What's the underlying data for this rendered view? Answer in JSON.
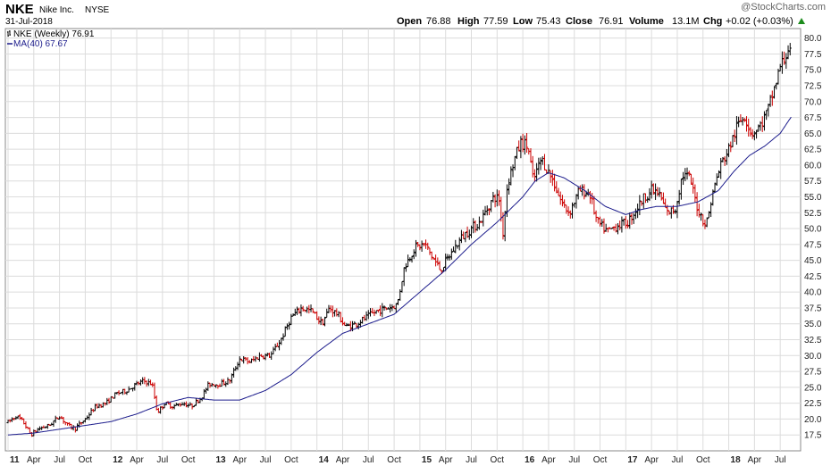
{
  "header": {
    "ticker": "NKE",
    "company": "Nike Inc.",
    "exchange": "NYSE",
    "date": "31-Jul-2018",
    "quote": {
      "open_label": "Open",
      "open": "76.88",
      "high_label": "High",
      "high": "77.59",
      "low_label": "Low",
      "low": "75.43",
      "close_label": "Close",
      "close": "76.91",
      "volume_label": "Volume",
      "volume": "13.1M",
      "chg_label": "Chg",
      "chg": "+0.02 (+0.03%)"
    },
    "watermark": "@StockCharts.com"
  },
  "legend": {
    "price": "NKE (Weekly) 76.91",
    "ma": "MA(40) 67.67"
  },
  "colors": {
    "up": "#000000",
    "down": "#cc0000",
    "ma": "#1c1c8c",
    "grid": "#dcdcdc",
    "chg_arrow": "#1c8c1c"
  },
  "chart_data": {
    "type": "bar",
    "style": "weekly OHLC bars",
    "ylim": [
      15.0,
      81.5
    ],
    "y_ticks": [
      "17.5",
      "20.0",
      "22.5",
      "25.0",
      "27.5",
      "30.0",
      "32.5",
      "35.0",
      "37.5",
      "40.0",
      "42.5",
      "45.0",
      "47.5",
      "50.0",
      "52.5",
      "55.0",
      "57.5",
      "60.0",
      "62.5",
      "65.0",
      "67.5",
      "70.0",
      "72.5",
      "75.0",
      "77.5",
      "80.0"
    ],
    "x_start": 2011.0,
    "x_end": 2018.62,
    "x_ticks": [
      {
        "label": "11",
        "t": 2011.0,
        "year": true
      },
      {
        "label": "Apr",
        "t": 2011.25
      },
      {
        "label": "Jul",
        "t": 2011.5
      },
      {
        "label": "Oct",
        "t": 2011.75
      },
      {
        "label": "12",
        "t": 2012.0,
        "year": true
      },
      {
        "label": "Apr",
        "t": 2012.25
      },
      {
        "label": "Jul",
        "t": 2012.5
      },
      {
        "label": "Oct",
        "t": 2012.75
      },
      {
        "label": "13",
        "t": 2013.0,
        "year": true
      },
      {
        "label": "Apr",
        "t": 2013.25
      },
      {
        "label": "Jul",
        "t": 2013.5
      },
      {
        "label": "Oct",
        "t": 2013.75
      },
      {
        "label": "14",
        "t": 2014.0,
        "year": true
      },
      {
        "label": "Apr",
        "t": 2014.25
      },
      {
        "label": "Jul",
        "t": 2014.5
      },
      {
        "label": "Oct",
        "t": 2014.75
      },
      {
        "label": "15",
        "t": 2015.0,
        "year": true
      },
      {
        "label": "Apr",
        "t": 2015.25
      },
      {
        "label": "Jul",
        "t": 2015.5
      },
      {
        "label": "Oct",
        "t": 2015.75
      },
      {
        "label": "16",
        "t": 2016.0,
        "year": true
      },
      {
        "label": "Apr",
        "t": 2016.25
      },
      {
        "label": "Jul",
        "t": 2016.5
      },
      {
        "label": "Oct",
        "t": 2016.75
      },
      {
        "label": "17",
        "t": 2017.0,
        "year": true
      },
      {
        "label": "Apr",
        "t": 2017.25
      },
      {
        "label": "Jul",
        "t": 2017.5
      },
      {
        "label": "Oct",
        "t": 2017.75
      },
      {
        "label": "18",
        "t": 2018.0,
        "year": true
      },
      {
        "label": "Apr",
        "t": 2018.25
      },
      {
        "label": "Jul",
        "t": 2018.5
      }
    ],
    "price_anchors": [
      [
        2011.0,
        19.5
      ],
      [
        2011.08,
        20.5
      ],
      [
        2011.15,
        19.5
      ],
      [
        2011.22,
        17.5
      ],
      [
        2011.3,
        18.5
      ],
      [
        2011.4,
        19.0
      ],
      [
        2011.5,
        20.5
      ],
      [
        2011.58,
        19.0
      ],
      [
        2011.65,
        18.5
      ],
      [
        2011.75,
        20.0
      ],
      [
        2011.85,
        22.0
      ],
      [
        2011.95,
        22.5
      ],
      [
        2012.05,
        24.0
      ],
      [
        2012.15,
        24.5
      ],
      [
        2012.25,
        25.5
      ],
      [
        2012.32,
        26.0
      ],
      [
        2012.4,
        25.5
      ],
      [
        2012.45,
        21.0
      ],
      [
        2012.52,
        22.5
      ],
      [
        2012.6,
        22.0
      ],
      [
        2012.7,
        22.5
      ],
      [
        2012.78,
        22.0
      ],
      [
        2012.88,
        23.5
      ],
      [
        2012.95,
        25.5
      ],
      [
        2013.05,
        25.5
      ],
      [
        2013.15,
        26.0
      ],
      [
        2013.25,
        29.5
      ],
      [
        2013.35,
        29.0
      ],
      [
        2013.45,
        30.0
      ],
      [
        2013.55,
        30.0
      ],
      [
        2013.65,
        32.5
      ],
      [
        2013.75,
        36.0
      ],
      [
        2013.85,
        37.5
      ],
      [
        2013.95,
        37.0
      ],
      [
        2014.05,
        35.0
      ],
      [
        2014.12,
        37.5
      ],
      [
        2014.2,
        36.5
      ],
      [
        2014.28,
        34.5
      ],
      [
        2014.38,
        35.0
      ],
      [
        2014.48,
        36.0
      ],
      [
        2014.58,
        37.0
      ],
      [
        2014.68,
        37.5
      ],
      [
        2014.78,
        38.0
      ],
      [
        2014.85,
        44.0
      ],
      [
        2014.95,
        47.0
      ],
      [
        2015.05,
        47.5
      ],
      [
        2015.12,
        45.5
      ],
      [
        2015.2,
        43.5
      ],
      [
        2015.3,
        46.0
      ],
      [
        2015.4,
        48.5
      ],
      [
        2015.5,
        50.0
      ],
      [
        2015.58,
        51.0
      ],
      [
        2015.65,
        53.0
      ],
      [
        2015.72,
        55.0
      ],
      [
        2015.78,
        54.5
      ],
      [
        2015.8,
        48.0
      ],
      [
        2015.85,
        57.0
      ],
      [
        2015.92,
        61.0
      ],
      [
        2015.98,
        63.5
      ],
      [
        2016.05,
        63.0
      ],
      [
        2016.1,
        57.5
      ],
      [
        2016.18,
        61.0
      ],
      [
        2016.28,
        58.0
      ],
      [
        2016.38,
        54.0
      ],
      [
        2016.45,
        52.5
      ],
      [
        2016.55,
        56.0
      ],
      [
        2016.65,
        55.5
      ],
      [
        2016.72,
        51.0
      ],
      [
        2016.82,
        49.5
      ],
      [
        2016.92,
        50.5
      ],
      [
        2017.02,
        51.0
      ],
      [
        2017.1,
        53.0
      ],
      [
        2017.18,
        55.0
      ],
      [
        2017.25,
        56.0
      ],
      [
        2017.32,
        55.5
      ],
      [
        2017.4,
        52.5
      ],
      [
        2017.48,
        53.0
      ],
      [
        2017.55,
        58.5
      ],
      [
        2017.62,
        58.0
      ],
      [
        2017.7,
        53.0
      ],
      [
        2017.78,
        50.5
      ],
      [
        2017.85,
        56.0
      ],
      [
        2017.92,
        60.0
      ],
      [
        2018.0,
        62.5
      ],
      [
        2018.08,
        66.0
      ],
      [
        2018.15,
        68.0
      ],
      [
        2018.22,
        65.0
      ],
      [
        2018.3,
        66.0
      ],
      [
        2018.38,
        68.5
      ],
      [
        2018.45,
        72.5
      ],
      [
        2018.5,
        75.5
      ],
      [
        2018.55,
        77.0
      ],
      [
        2018.58,
        78.5
      ],
      [
        2018.61,
        76.9
      ]
    ],
    "ma_anchors": [
      [
        2011.0,
        17.5
      ],
      [
        2011.25,
        17.8
      ],
      [
        2011.5,
        18.4
      ],
      [
        2011.75,
        19.0
      ],
      [
        2012.0,
        19.6
      ],
      [
        2012.25,
        20.8
      ],
      [
        2012.5,
        22.4
      ],
      [
        2012.75,
        23.4
      ],
      [
        2013.0,
        23.0
      ],
      [
        2013.25,
        23.0
      ],
      [
        2013.5,
        24.5
      ],
      [
        2013.75,
        27.0
      ],
      [
        2014.0,
        30.5
      ],
      [
        2014.25,
        33.5
      ],
      [
        2014.5,
        35.0
      ],
      [
        2014.75,
        36.5
      ],
      [
        2015.0,
        40.0
      ],
      [
        2015.25,
        43.5
      ],
      [
        2015.5,
        47.5
      ],
      [
        2015.75,
        51.0
      ],
      [
        2016.0,
        55.0
      ],
      [
        2016.12,
        57.5
      ],
      [
        2016.25,
        58.8
      ],
      [
        2016.4,
        58.0
      ],
      [
        2016.6,
        56.0
      ],
      [
        2016.8,
        53.5
      ],
      [
        2017.0,
        52.2
      ],
      [
        2017.15,
        53.0
      ],
      [
        2017.3,
        53.5
      ],
      [
        2017.5,
        53.5
      ],
      [
        2017.7,
        54.2
      ],
      [
        2017.9,
        56.0
      ],
      [
        2018.05,
        59.0
      ],
      [
        2018.2,
        61.5
      ],
      [
        2018.35,
        63.0
      ],
      [
        2018.5,
        65.0
      ],
      [
        2018.61,
        67.67
      ]
    ]
  }
}
